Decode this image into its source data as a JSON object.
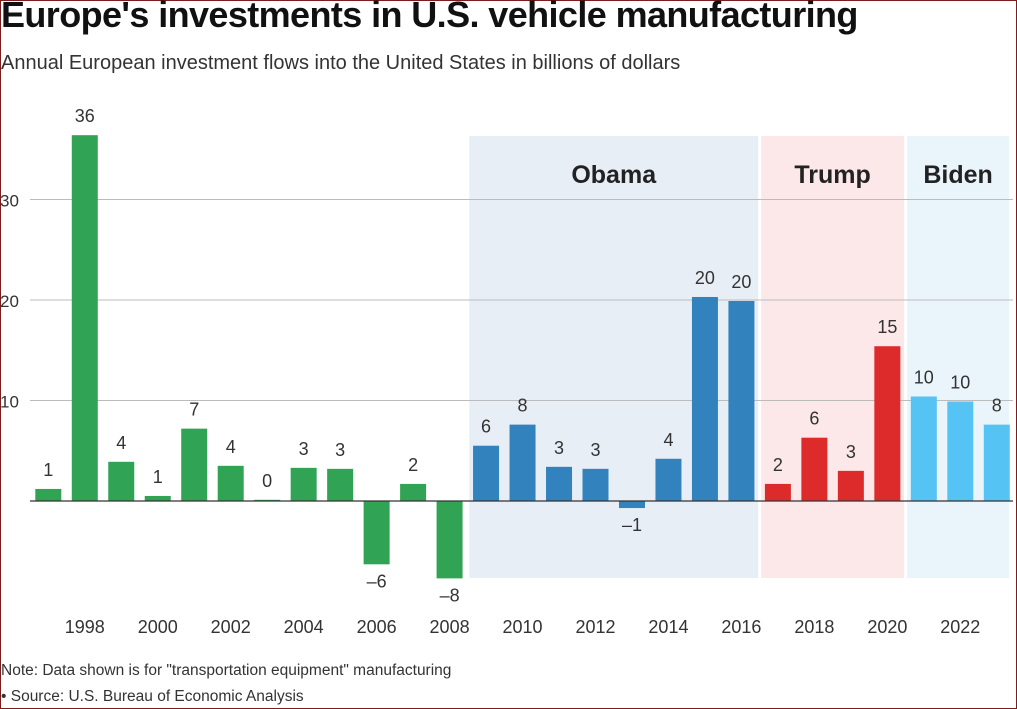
{
  "header": {
    "title": "Europe's investments in U.S. vehicle manufacturing",
    "subtitle": "Annual European investment flows into the United States in billions of dollars"
  },
  "footer": {
    "note": "Note: Data shown is for \"transportation equipment\" manufacturing",
    "source": "• Source: U.S. Bureau of Economic Analysis"
  },
  "chart_data": {
    "type": "bar",
    "title": "Europe's investments in U.S. vehicle manufacturing",
    "subtitle": "Annual European investment flows into the United States in billions of dollars",
    "ylim": [
      -8.5,
      40
    ],
    "yticks": [
      {
        "value": 10,
        "label": "10"
      },
      {
        "value": 20,
        "label": "20"
      },
      {
        "value": 30,
        "label": "30"
      }
    ],
    "grid": true,
    "xtick_labels": [
      "1998",
      "2000",
      "2002",
      "2004",
      "2006",
      "2008",
      "2010",
      "2012",
      "2014",
      "2016",
      "2018",
      "2020",
      "2022"
    ],
    "categories": [
      "1997",
      "1998",
      "1999",
      "2000",
      "2001",
      "2002",
      "2003",
      "2004",
      "2005",
      "2006",
      "2007",
      "2008",
      "2009",
      "2010",
      "2011",
      "2012",
      "2013",
      "2014",
      "2015",
      "2016",
      "2017",
      "2018",
      "2019",
      "2020",
      "2021",
      "2022",
      "2023"
    ],
    "values": [
      1.2,
      36.4,
      3.9,
      0.5,
      7.2,
      3.5,
      0.1,
      3.3,
      3.2,
      -6.3,
      1.7,
      -7.7,
      5.5,
      7.6,
      3.4,
      3.2,
      -0.7,
      4.2,
      20.3,
      19.9,
      1.7,
      6.3,
      3.0,
      15.4,
      10.4,
      9.9,
      7.6
    ],
    "data_labels": [
      "1",
      "36",
      "4",
      "1",
      "7",
      "4",
      "0",
      "3",
      "3",
      "–6",
      "2",
      "–8",
      "6",
      "8",
      "3",
      "3",
      "–1",
      "4",
      "20",
      "20",
      "2",
      "6",
      "3",
      "15",
      "10",
      "10",
      "8"
    ],
    "periods": [
      {
        "name": "Obama",
        "from": "2009",
        "to": "2016",
        "bar_color": "#3182bd",
        "band_color": "#e7eef5"
      },
      {
        "name": "Trump",
        "from": "2017",
        "to": "2020",
        "bar_color": "#dd2b2b",
        "band_color": "#fce8e8"
      },
      {
        "name": "Biden",
        "from": "2021",
        "to": "2023",
        "bar_color": "#56c3f5",
        "band_color": "#eaf5fb"
      }
    ],
    "default_bar_color": "#31a354",
    "gridline_color": "#bbbbbb"
  }
}
